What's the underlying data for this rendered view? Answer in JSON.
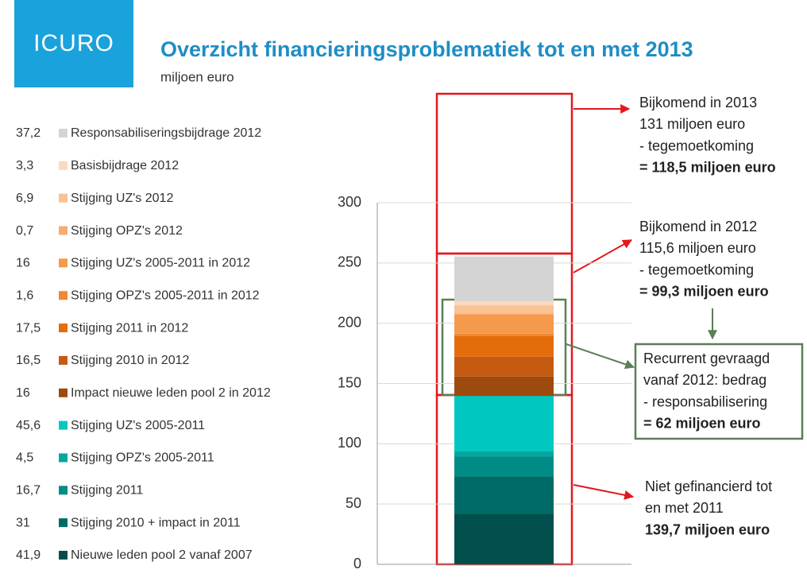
{
  "header": {
    "logo": "ICURO",
    "title": "Overzicht financieringsproblematiek tot en met 2013",
    "subtitle": "miljoen euro"
  },
  "chart_data": {
    "type": "stacked_bar",
    "ylim": [
      0,
      300
    ],
    "yticks": [
      0,
      50,
      100,
      150,
      200,
      250,
      300
    ],
    "grid": true,
    "series": [
      {
        "name": "Responsabiliseringsbijdrage 2012",
        "color": "#d4d4d4",
        "values": [
          37.2
        ],
        "value_labels": [
          "37,2"
        ]
      },
      {
        "name": "Basisbijdrage 2012",
        "color": "#fcd9bd",
        "values": [
          3.3
        ],
        "value_labels": [
          "3,3"
        ]
      },
      {
        "name": "Stijging UZ's 2012",
        "color": "#f9c394",
        "values": [
          6.9
        ],
        "value_labels": [
          "6,9"
        ]
      },
      {
        "name": "Stijging OPZ's 2012",
        "color": "#f7ad72",
        "values": [
          0.7
        ],
        "value_labels": [
          "0,7"
        ]
      },
      {
        "name": "Stijging UZ's 2005-2011 in 2012",
        "color": "#f59a4c",
        "values": [
          16
        ],
        "value_labels": [
          "16"
        ]
      },
      {
        "name": "Stijging OPZ's 2005-2011 in 2012",
        "color": "#f08834",
        "values": [
          1.6
        ],
        "value_labels": [
          "1,6"
        ]
      },
      {
        "name": "Stijging 2011 in 2012",
        "color": "#e46c0a",
        "values": [
          17.5
        ],
        "value_labels": [
          "17,5"
        ]
      },
      {
        "name": "Stijging 2010 in 2012",
        "color": "#c55a11",
        "values": [
          16.5
        ],
        "value_labels": [
          "16,5"
        ]
      },
      {
        "name": "Impact nieuwe leden pool 2 in 2012",
        "color": "#9c4a0e",
        "values": [
          16
        ],
        "value_labels": [
          "16"
        ]
      },
      {
        "name": "Stijging UZ's 2005-2011",
        "color": "#00c8c0",
        "values": [
          45.6
        ],
        "value_labels": [
          "45,6"
        ]
      },
      {
        "name": "Stijging OPZ's 2005-2011",
        "color": "#00a8a0",
        "values": [
          4.5
        ],
        "value_labels": [
          "4,5"
        ]
      },
      {
        "name": "Stijging 2011",
        "color": "#008c86",
        "values": [
          16.7
        ],
        "value_labels": [
          "16,7"
        ]
      },
      {
        "name": "Stijging 2010 + impact in 2011",
        "color": "#006b66",
        "values": [
          31
        ],
        "value_labels": [
          "31"
        ]
      },
      {
        "name": "Nieuwe leden pool 2 vanaf 2007",
        "color": "#004f4c",
        "values": [
          41.9
        ],
        "value_labels": [
          "41,9"
        ]
      }
    ],
    "annotations": [
      {
        "lines": [
          "Bijkomend in 2013",
          "131 miljoen euro",
          "- tegemoetkoming",
          "= 118,5 miljoen euro"
        ]
      },
      {
        "lines": [
          "Bijkomend in 2012",
          "115,6 miljoen euro",
          "- tegemoetkoming",
          "= 99,3  miljoen euro"
        ]
      },
      {
        "lines": [
          "Recurrent gevraagd",
          "vanaf 2012: bedrag",
          "- responsabilisering",
          "= 62 miljoen euro"
        ]
      },
      {
        "lines": [
          "Niet gefinancierd tot",
          "en met 2011",
          "139,7 miljoen euro"
        ]
      }
    ]
  }
}
